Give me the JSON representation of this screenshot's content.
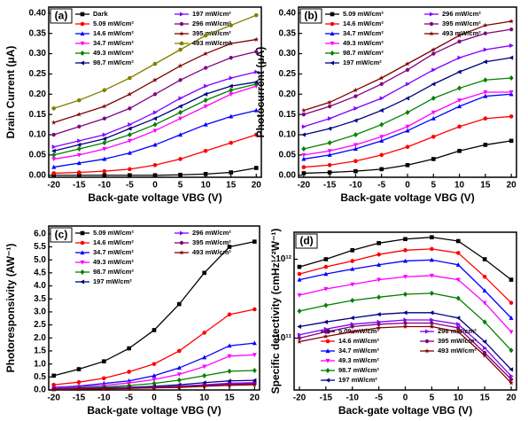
{
  "chart_data": [
    {
      "type": "line",
      "label": "(a)",
      "xlabel": "Back-gate voltage VBG (V)",
      "ylabel": "Drain Current (μA)",
      "x": [
        -20,
        -15,
        -10,
        -5,
        0,
        5,
        10,
        15,
        20
      ],
      "xlim": [
        -21,
        21
      ],
      "xticks": [
        -20,
        -15,
        -10,
        -5,
        0,
        5,
        10,
        15,
        20
      ],
      "ylim": [
        -0.005,
        0.415
      ],
      "yticks": [
        {
          "value": 0,
          "label": "0.00"
        },
        {
          "value": 0.05,
          "label": "0.05"
        },
        {
          "value": 0.1,
          "label": "0.10"
        },
        {
          "value": 0.15,
          "label": "0.15"
        },
        {
          "value": 0.2,
          "label": "0.20"
        },
        {
          "value": 0.25,
          "label": "0.25"
        },
        {
          "value": 0.3,
          "label": "0.30"
        },
        {
          "value": 0.35,
          "label": "0.35"
        },
        {
          "value": 0.4,
          "label": "0.40"
        }
      ],
      "legend": "upper left",
      "series": [
        {
          "name": "Dark",
          "color": "#000000",
          "values": [
            0,
            0,
            0,
            0,
            0,
            0.001,
            0.003,
            0.007,
            0.018
          ]
        },
        {
          "name": "5.09 mW/cm²",
          "color": "#ff0000",
          "values": [
            0.005,
            0.007,
            0.01,
            0.015,
            0.025,
            0.04,
            0.06,
            0.08,
            0.1
          ]
        },
        {
          "name": "14.6 mW/cm²",
          "color": "#0000ff",
          "values": [
            0.02,
            0.03,
            0.04,
            0.055,
            0.075,
            0.1,
            0.125,
            0.145,
            0.16
          ]
        },
        {
          "name": "34.7 mW/cm²",
          "color": "#ff00ff",
          "values": [
            0.04,
            0.05,
            0.065,
            0.085,
            0.11,
            0.14,
            0.17,
            0.2,
            0.22
          ]
        },
        {
          "name": "49.3 mW/cm²",
          "color": "#008000",
          "values": [
            0.05,
            0.065,
            0.08,
            0.1,
            0.125,
            0.155,
            0.185,
            0.21,
            0.225
          ]
        },
        {
          "name": "98.7 mW/cm²",
          "color": "#000080",
          "values": [
            0.06,
            0.075,
            0.09,
            0.115,
            0.14,
            0.17,
            0.2,
            0.22,
            0.23
          ]
        },
        {
          "name": "197 mW/cm²",
          "color": "#8000ff",
          "values": [
            0.07,
            0.085,
            0.1,
            0.125,
            0.155,
            0.19,
            0.22,
            0.24,
            0.255
          ]
        },
        {
          "name": "296 mW/cm²",
          "color": "#800080",
          "values": [
            0.1,
            0.12,
            0.14,
            0.165,
            0.2,
            0.235,
            0.265,
            0.29,
            0.305
          ]
        },
        {
          "name": "395 mW/cm²",
          "color": "#800000",
          "values": [
            0.13,
            0.15,
            0.17,
            0.2,
            0.235,
            0.27,
            0.3,
            0.325,
            0.335
          ]
        },
        {
          "name": "493 mW/cm²",
          "color": "#808000",
          "values": [
            0.165,
            0.185,
            0.21,
            0.24,
            0.275,
            0.31,
            0.345,
            0.37,
            0.395
          ]
        }
      ]
    },
    {
      "type": "line",
      "label": "(b)",
      "xlabel": "Back-gate voltage VBG (V)",
      "ylabel": "Photocurrent (μA)",
      "x": [
        -20,
        -15,
        -10,
        -5,
        0,
        5,
        10,
        15,
        20
      ],
      "xlim": [
        -21,
        21
      ],
      "xticks": [
        -20,
        -15,
        -10,
        -5,
        0,
        5,
        10,
        15,
        20
      ],
      "ylim": [
        -0.005,
        0.415
      ],
      "yticks": [
        {
          "value": 0,
          "label": "0.00"
        },
        {
          "value": 0.05,
          "label": "0.05"
        },
        {
          "value": 0.1,
          "label": "0.10"
        },
        {
          "value": 0.15,
          "label": "0.15"
        },
        {
          "value": 0.2,
          "label": "0.20"
        },
        {
          "value": 0.25,
          "label": "0.25"
        },
        {
          "value": 0.3,
          "label": "0.30"
        },
        {
          "value": 0.35,
          "label": "0.35"
        },
        {
          "value": 0.4,
          "label": "0.40"
        }
      ],
      "legend": "upper left",
      "series": [
        {
          "name": "5.09 mW/cm²",
          "color": "#000000",
          "values": [
            0.005,
            0.007,
            0.01,
            0.015,
            0.025,
            0.04,
            0.06,
            0.075,
            0.085
          ]
        },
        {
          "name": "14.6 mW/cm²",
          "color": "#ff0000",
          "values": [
            0.02,
            0.025,
            0.035,
            0.05,
            0.07,
            0.095,
            0.12,
            0.14,
            0.145
          ]
        },
        {
          "name": "34.7 mW/cm²",
          "color": "#0000ff",
          "values": [
            0.04,
            0.05,
            0.065,
            0.085,
            0.11,
            0.14,
            0.17,
            0.195,
            0.2
          ]
        },
        {
          "name": "49.3 mW/cm²",
          "color": "#ff00ff",
          "values": [
            0.05,
            0.06,
            0.075,
            0.095,
            0.12,
            0.155,
            0.185,
            0.205,
            0.205
          ]
        },
        {
          "name": "98.7 mW/cm²",
          "color": "#008000",
          "values": [
            0.065,
            0.08,
            0.1,
            0.125,
            0.155,
            0.19,
            0.215,
            0.235,
            0.24
          ]
        },
        {
          "name": "197 mW/cm²",
          "color": "#000080",
          "values": [
            0.1,
            0.115,
            0.135,
            0.16,
            0.19,
            0.225,
            0.255,
            0.28,
            0.29
          ]
        },
        {
          "name": "296 mW/cm²",
          "color": "#8000ff",
          "values": [
            0.12,
            0.14,
            0.165,
            0.19,
            0.225,
            0.26,
            0.29,
            0.31,
            0.32
          ]
        },
        {
          "name": "395 mW/cm²",
          "color": "#800080",
          "values": [
            0.15,
            0.17,
            0.195,
            0.225,
            0.26,
            0.3,
            0.33,
            0.35,
            0.36
          ]
        },
        {
          "name": "493 mW/cm²",
          "color": "#800000",
          "values": [
            0.16,
            0.18,
            0.21,
            0.24,
            0.275,
            0.31,
            0.345,
            0.37,
            0.38
          ]
        }
      ]
    },
    {
      "type": "line",
      "label": "(c)",
      "xlabel": "Back-gate voltage VBG (V)",
      "ylabel": "Photoresponsivity (AW⁻¹)",
      "x": [
        -20,
        -15,
        -10,
        -5,
        0,
        5,
        10,
        15,
        20
      ],
      "xlim": [
        -21,
        21
      ],
      "xticks": [
        -20,
        -15,
        -10,
        -5,
        0,
        5,
        10,
        15,
        20
      ],
      "ylim": [
        0,
        6.3
      ],
      "yticks": [
        {
          "value": 0,
          "label": "0.0"
        },
        {
          "value": 0.5,
          "label": "0.5"
        },
        {
          "value": 1,
          "label": "1.0"
        },
        {
          "value": 1.5,
          "label": "1.5"
        },
        {
          "value": 2,
          "label": "2.0"
        },
        {
          "value": 2.5,
          "label": "2.5"
        },
        {
          "value": 3,
          "label": "3.0"
        },
        {
          "value": 3.5,
          "label": "3.5"
        },
        {
          "value": 4,
          "label": "4.0"
        },
        {
          "value": 4.5,
          "label": "4.5"
        },
        {
          "value": 5,
          "label": "5.0"
        },
        {
          "value": 5.5,
          "label": "5.5"
        },
        {
          "value": 6,
          "label": "6.0"
        }
      ],
      "legend": "upper left",
      "series": [
        {
          "name": "5.09 mW/cm²",
          "color": "#000000",
          "values": [
            0.55,
            0.8,
            1.1,
            1.6,
            2.3,
            3.3,
            4.5,
            5.5,
            5.7
          ]
        },
        {
          "name": "14.6 mW/cm²",
          "color": "#ff0000",
          "values": [
            0.2,
            0.3,
            0.45,
            0.7,
            1,
            1.5,
            2.2,
            2.9,
            3.1
          ]
        },
        {
          "name": "34.7 mW/cm²",
          "color": "#0000ff",
          "values": [
            0.1,
            0.15,
            0.25,
            0.35,
            0.55,
            0.85,
            1.25,
            1.7,
            1.8
          ]
        },
        {
          "name": "49.3 mW/cm²",
          "color": "#ff00ff",
          "values": [
            0.08,
            0.12,
            0.18,
            0.27,
            0.4,
            0.6,
            0.9,
            1.3,
            1.35
          ]
        },
        {
          "name": "98.7 mW/cm²",
          "color": "#008000",
          "values": [
            0.05,
            0.08,
            0.12,
            0.17,
            0.25,
            0.38,
            0.55,
            0.72,
            0.75
          ]
        },
        {
          "name": "197 mW/cm²",
          "color": "#000080",
          "values": [
            0.04,
            0.06,
            0.08,
            0.1,
            0.14,
            0.2,
            0.28,
            0.35,
            0.37
          ]
        },
        {
          "name": "296 mW/cm²",
          "color": "#8000ff",
          "values": [
            0.03,
            0.05,
            0.06,
            0.08,
            0.1,
            0.15,
            0.2,
            0.26,
            0.28
          ]
        },
        {
          "name": "395 mW/cm²",
          "color": "#800080",
          "values": [
            0.03,
            0.04,
            0.05,
            0.07,
            0.09,
            0.13,
            0.17,
            0.22,
            0.24
          ]
        },
        {
          "name": "493 mW/cm²",
          "color": "#800000",
          "values": [
            0.02,
            0.03,
            0.04,
            0.06,
            0.08,
            0.1,
            0.14,
            0.18,
            0.2
          ]
        }
      ]
    },
    {
      "type": "line",
      "label": "(d)",
      "xlabel": "Back-gate voltage VBG (V)",
      "ylabel": "Specific detectivity (cmHz¹ᐟ²W⁻¹)",
      "x": [
        -20,
        -15,
        -10,
        -5,
        0,
        5,
        10,
        15,
        20
      ],
      "xlim": [
        -21,
        21
      ],
      "xticks": [
        -20,
        -15,
        -10,
        -5,
        0,
        5,
        10,
        15,
        20
      ],
      "yscale": "log",
      "ylim": [
        22000000000.0,
        2200000000000.0
      ],
      "yticks": [
        {
          "value": 100000000000.0,
          "label": "10¹¹"
        },
        {
          "value": 1000000000000.0,
          "label": "10¹²"
        }
      ],
      "legend": "lower left",
      "series": [
        {
          "name": "5.09 mW/cm²",
          "color": "#000000",
          "values": [
            800000000000.0,
            1000000000000.0,
            1300000000000.0,
            1600000000000.0,
            1800000000000.0,
            1900000000000.0,
            1700000000000.0,
            1000000000000.0,
            550000000000.0
          ]
        },
        {
          "name": "14.6 mW/cm²",
          "color": "#ff0000",
          "values": [
            650000000000.0,
            800000000000.0,
            950000000000.0,
            1150000000000.0,
            1300000000000.0,
            1350000000000.0,
            1200000000000.0,
            600000000000.0,
            280000000000.0
          ]
        },
        {
          "name": "34.7 mW/cm²",
          "color": "#0000ff",
          "values": [
            550000000000.0,
            650000000000.0,
            750000000000.0,
            850000000000.0,
            950000000000.0,
            980000000000.0,
            850000000000.0,
            400000000000.0,
            180000000000.0
          ]
        },
        {
          "name": "49.3 mW/cm²",
          "color": "#ff00ff",
          "values": [
            350000000000.0,
            420000000000.0,
            480000000000.0,
            550000000000.0,
            600000000000.0,
            620000000000.0,
            550000000000.0,
            280000000000.0,
            120000000000.0
          ]
        },
        {
          "name": "98.7 mW/cm²",
          "color": "#008000",
          "values": [
            220000000000.0,
            260000000000.0,
            300000000000.0,
            330000000000.0,
            360000000000.0,
            370000000000.0,
            320000000000.0,
            160000000000.0,
            70000000000.0
          ]
        },
        {
          "name": "197 mW/cm²",
          "color": "#000080",
          "values": [
            140000000000.0,
            160000000000.0,
            180000000000.0,
            200000000000.0,
            210000000000.0,
            210000000000.0,
            180000000000.0,
            90000000000.0,
            40000000000.0
          ]
        },
        {
          "name": "296 mW/cm²",
          "color": "#8000ff",
          "values": [
            110000000000.0,
            130000000000.0,
            150000000000.0,
            160000000000.0,
            170000000000.0,
            170000000000.0,
            150000000000.0,
            75000000000.0,
            33000000000.0
          ]
        },
        {
          "name": "395 mW/cm²",
          "color": "#800080",
          "values": [
            100000000000.0,
            120000000000.0,
            140000000000.0,
            150000000000.0,
            155000000000.0,
            155000000000.0,
            135000000000.0,
            65000000000.0,
            30000000000.0
          ]
        },
        {
          "name": "493 mW/cm²",
          "color": "#800000",
          "values": [
            90000000000.0,
            105000000000.0,
            120000000000.0,
            135000000000.0,
            140000000000.0,
            140000000000.0,
            120000000000.0,
            60000000000.0,
            27000000000.0
          ]
        }
      ]
    }
  ]
}
